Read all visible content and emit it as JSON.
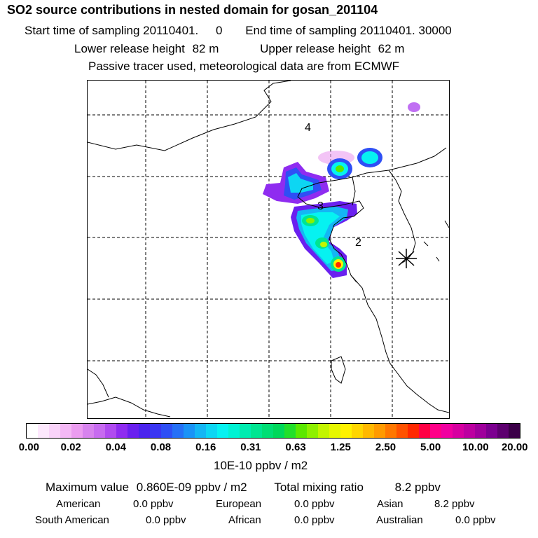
{
  "header": {
    "title": "SO2 source contributions in nested domain for gosan_201104",
    "start_label": "Start time of sampling",
    "start_value": "20110401.",
    "start_sub": "0",
    "end_label": "End time of sampling",
    "end_value": "20110401. 30000",
    "lower_label": "Lower release height",
    "lower_value": "82 m",
    "upper_label": "Upper release height",
    "upper_value": "62 m",
    "note": "Passive tracer used, meteorological data are from ECMWF"
  },
  "map": {
    "labels": [
      {
        "text": "4"
      },
      {
        "text": "3"
      },
      {
        "text": "2"
      }
    ],
    "colors": {
      "grid": "#000000",
      "coast": "#000000"
    }
  },
  "colorbar": {
    "colors": [
      "#ffffff",
      "#fde8fd",
      "#f9d3f9",
      "#f4b8f5",
      "#eb9cf0",
      "#d783ee",
      "#c76bf0",
      "#b04bf0",
      "#8f2cf0",
      "#6a20ef",
      "#4b24ee",
      "#3a36f3",
      "#2e4ff5",
      "#2570f6",
      "#1a93f6",
      "#14b6f4",
      "#0dd6f3",
      "#06f2f1",
      "#00f2d3",
      "#00ecb0",
      "#00e591",
      "#00de74",
      "#00d85a",
      "#22df2a",
      "#5be800",
      "#8ef000",
      "#c3f500",
      "#e6f700",
      "#fff200",
      "#ffd600",
      "#ffb800",
      "#ff9a00",
      "#ff7700",
      "#ff5200",
      "#ff2800",
      "#ff0044",
      "#ff0088",
      "#f000a0",
      "#d600a0",
      "#bc00a0",
      "#9f009c",
      "#7c0090",
      "#5d006f",
      "#3b0048"
    ],
    "ticks": [
      "0.00",
      "0.02",
      "0.04",
      "0.08",
      "0.16",
      "0.31",
      "0.63",
      "1.25",
      "2.50",
      "5.00",
      "10.00",
      "20.00"
    ],
    "units": "10E-10 ppbv / m2"
  },
  "summary": {
    "max_label": "Maximum value",
    "max_value": "0.860E-09 ppbv / m2",
    "total_label": "Total mixing ratio",
    "total_value": "8.2 ppbv",
    "regions": [
      {
        "name": "American",
        "value": "0.0 ppbv"
      },
      {
        "name": "European",
        "value": "0.0 ppbv"
      },
      {
        "name": "Asian",
        "value": "8.2 ppbv"
      },
      {
        "name": "South American",
        "value": "0.0 ppbv"
      },
      {
        "name": "African",
        "value": "0.0 ppbv"
      },
      {
        "name": "Australian",
        "value": "0.0 ppbv"
      }
    ]
  }
}
